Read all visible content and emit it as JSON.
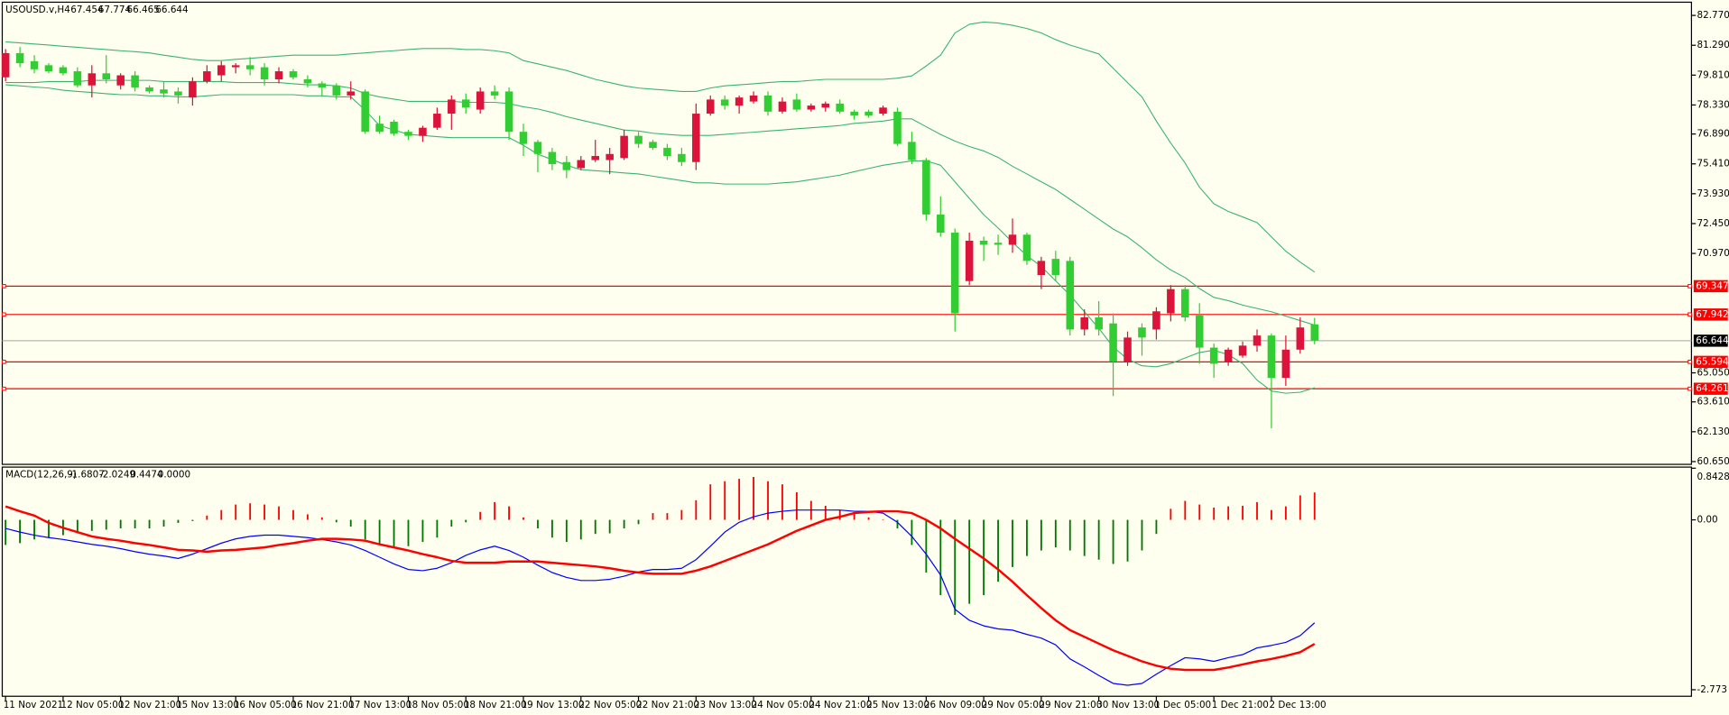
{
  "chart_data": {
    "type": "candlestick",
    "symbol_label": "USOUSD.v,H4",
    "background": "#fffff0",
    "up_color": "#dc143c",
    "down_color": "#32cd32",
    "candles": {
      "open": [
        79.7,
        80.9,
        80.5,
        80.3,
        80.2,
        80.0,
        79.3,
        79.9,
        79.3,
        79.8,
        79.2,
        79.1,
        79.0,
        78.7,
        79.5,
        79.8,
        80.2,
        80.3,
        80.2,
        79.6,
        80.0,
        79.6,
        79.4,
        79.3,
        78.8,
        79.0,
        77.4,
        77.5,
        77.0,
        76.8,
        77.2,
        77.9,
        78.6,
        78.1,
        79.0,
        79.0,
        77.0,
        76.5,
        76.0,
        75.5,
        75.2,
        75.6,
        75.6,
        75.7,
        76.8,
        76.5,
        76.2,
        75.9,
        75.5,
        77.9,
        78.6,
        78.3,
        78.5,
        78.8,
        78.0,
        78.6,
        78.1,
        78.2,
        78.4,
        78.0,
        78.0,
        77.9,
        78.0,
        76.5,
        75.6,
        72.9,
        72.0,
        69.6,
        71.6,
        71.5,
        71.4,
        71.9,
        69.9,
        70.7,
        70.6,
        67.2,
        67.8,
        67.5,
        65.6,
        67.3,
        67.2,
        68.0,
        69.2,
        67.9,
        66.3,
        65.6,
        65.9,
        66.4,
        66.9,
        64.8,
        66.2,
        67.454
      ],
      "high": [
        81.1,
        81.2,
        80.8,
        80.4,
        80.3,
        80.2,
        80.3,
        80.8,
        79.9,
        80.0,
        79.3,
        79.5,
        79.2,
        79.7,
        80.3,
        80.5,
        80.4,
        80.7,
        80.4,
        80.2,
        80.1,
        79.8,
        79.5,
        79.4,
        79.5,
        79.1,
        77.8,
        77.6,
        77.1,
        77.3,
        78.2,
        78.8,
        78.9,
        79.2,
        79.3,
        79.2,
        77.4,
        76.6,
        76.2,
        75.8,
        75.8,
        76.6,
        76.2,
        77.1,
        77.0,
        76.6,
        76.4,
        76.2,
        78.4,
        78.8,
        78.8,
        78.8,
        79.0,
        79.0,
        78.7,
        78.9,
        78.4,
        78.5,
        78.6,
        78.1,
        78.1,
        78.3,
        78.2,
        77.0,
        75.7,
        73.8,
        72.2,
        72.0,
        71.8,
        71.9,
        72.7,
        72.0,
        70.8,
        71.1,
        70.8,
        68.2,
        68.6,
        68.0,
        67.1,
        67.5,
        68.3,
        69.4,
        69.4,
        68.5,
        66.5,
        66.3,
        66.6,
        67.2,
        67.0,
        66.9,
        67.8,
        67.774
      ],
      "low": [
        79.5,
        80.2,
        79.9,
        79.9,
        79.8,
        79.2,
        78.7,
        79.4,
        79.1,
        79.0,
        78.9,
        78.7,
        78.4,
        78.3,
        79.4,
        79.5,
        79.9,
        79.8,
        79.3,
        79.4,
        79.6,
        79.2,
        78.8,
        78.6,
        78.6,
        76.9,
        76.9,
        76.8,
        76.6,
        76.5,
        77.1,
        77.1,
        77.9,
        77.9,
        78.6,
        76.6,
        75.8,
        75.0,
        75.1,
        74.7,
        75.1,
        75.5,
        74.9,
        75.6,
        76.2,
        76.1,
        75.6,
        75.3,
        75.1,
        77.8,
        78.1,
        77.9,
        78.4,
        77.8,
        77.9,
        78.0,
        78.0,
        78.0,
        77.9,
        77.6,
        77.7,
        77.8,
        76.3,
        75.4,
        72.6,
        71.8,
        67.1,
        69.4,
        70.6,
        70.9,
        71.0,
        70.4,
        69.2,
        69.6,
        66.9,
        66.9,
        66.9,
        63.9,
        65.4,
        65.9,
        66.7,
        67.6,
        67.6,
        65.5,
        64.8,
        65.4,
        65.8,
        66.1,
        62.3,
        64.4,
        66.0,
        66.465
      ],
      "close": [
        80.9,
        80.4,
        80.1,
        80.0,
        79.9,
        79.3,
        79.9,
        79.6,
        79.8,
        79.2,
        79.0,
        78.9,
        78.8,
        79.5,
        80.0,
        80.3,
        80.3,
        80.1,
        79.6,
        80.0,
        79.7,
        79.4,
        79.2,
        78.8,
        79.0,
        77.0,
        77.0,
        76.9,
        76.8,
        77.2,
        77.9,
        78.6,
        78.2,
        79.0,
        78.8,
        77.0,
        76.4,
        75.9,
        75.4,
        75.1,
        75.6,
        75.8,
        75.9,
        76.8,
        76.4,
        76.2,
        75.8,
        75.5,
        77.9,
        78.6,
        78.3,
        78.7,
        78.8,
        78.0,
        78.5,
        78.1,
        78.3,
        78.4,
        78.0,
        77.8,
        77.8,
        78.2,
        76.4,
        75.6,
        72.9,
        72.0,
        68.0,
        71.6,
        71.4,
        71.4,
        71.9,
        70.6,
        70.6,
        69.9,
        67.2,
        67.8,
        67.2,
        65.6,
        66.8,
        66.8,
        68.1,
        69.2,
        67.8,
        66.3,
        65.5,
        66.2,
        66.4,
        66.9,
        64.8,
        66.2,
        67.3,
        66.644
      ]
    },
    "bands": [
      {
        "color": "#3cb371",
        "values": [
          81.46,
          81.41,
          81.35,
          81.3,
          81.24,
          81.19,
          81.13,
          81.08,
          81.02,
          80.97,
          80.91,
          80.8,
          80.7,
          80.59,
          80.53,
          80.53,
          80.59,
          80.64,
          80.7,
          80.75,
          80.8,
          80.8,
          80.8,
          80.8,
          80.86,
          80.91,
          80.97,
          81.02,
          81.08,
          81.13,
          81.13,
          81.13,
          81.08,
          81.08,
          81.02,
          80.91,
          80.53,
          80.37,
          80.2,
          80.04,
          79.82,
          79.6,
          79.44,
          79.28,
          79.17,
          79.11,
          79.06,
          79.0,
          79.0,
          79.17,
          79.28,
          79.33,
          79.38,
          79.44,
          79.49,
          79.49,
          79.55,
          79.6,
          79.6,
          79.6,
          79.6,
          79.6,
          79.66,
          79.77,
          80.26,
          80.8,
          81.9,
          82.33,
          82.44,
          82.39,
          82.28,
          82.12,
          81.9,
          81.57,
          81.3,
          81.08,
          80.86,
          80.15,
          79.44,
          78.73,
          77.53,
          76.44,
          75.45,
          74.25,
          73.43,
          73.05,
          72.78,
          72.5,
          71.79,
          71.08,
          70.54,
          70.05
        ]
      },
      {
        "color": "#3cb371",
        "values": [
          79.44,
          79.44,
          79.44,
          79.49,
          79.49,
          79.49,
          79.55,
          79.55,
          79.55,
          79.55,
          79.55,
          79.49,
          79.49,
          79.49,
          79.49,
          79.49,
          79.44,
          79.44,
          79.44,
          79.44,
          79.38,
          79.33,
          79.33,
          79.28,
          79.17,
          78.89,
          78.73,
          78.62,
          78.51,
          78.51,
          78.51,
          78.51,
          78.46,
          78.46,
          78.46,
          78.4,
          78.24,
          78.13,
          77.96,
          77.75,
          77.58,
          77.42,
          77.25,
          77.09,
          77.04,
          76.93,
          76.87,
          76.82,
          76.82,
          76.82,
          76.87,
          76.93,
          76.98,
          77.04,
          77.09,
          77.15,
          77.2,
          77.25,
          77.31,
          77.42,
          77.47,
          77.53,
          77.64,
          77.64,
          77.25,
          76.87,
          76.54,
          76.27,
          76.05,
          75.73,
          75.29,
          74.91,
          74.52,
          74.14,
          73.65,
          73.16,
          72.67,
          72.18,
          71.79,
          71.25,
          70.65,
          70.15,
          69.77,
          69.23,
          68.79,
          68.63,
          68.41,
          68.24,
          68.08,
          67.86,
          67.64,
          67.42
        ]
      },
      {
        "color": "#3cb371",
        "values": [
          79.33,
          79.28,
          79.22,
          79.17,
          79.06,
          79.0,
          78.95,
          78.89,
          78.84,
          78.84,
          78.78,
          78.78,
          78.73,
          78.73,
          78.78,
          78.84,
          78.84,
          78.84,
          78.84,
          78.84,
          78.84,
          78.78,
          78.78,
          78.73,
          78.73,
          78.07,
          77.31,
          77.09,
          76.87,
          76.82,
          76.76,
          76.71,
          76.71,
          76.71,
          76.71,
          76.71,
          76.33,
          75.89,
          75.62,
          75.34,
          75.12,
          75.07,
          75.02,
          74.96,
          74.91,
          74.8,
          74.69,
          74.58,
          74.47,
          74.47,
          74.41,
          74.41,
          74.41,
          74.41,
          74.47,
          74.52,
          74.63,
          74.74,
          74.85,
          75.02,
          75.18,
          75.34,
          75.45,
          75.56,
          75.56,
          75.34,
          74.52,
          73.7,
          72.89,
          72.23,
          71.52,
          70.86,
          70.32,
          69.61,
          68.9,
          68.08,
          67.26,
          66.33,
          65.73,
          65.4,
          65.35,
          65.51,
          65.79,
          66.06,
          66.17,
          65.95,
          65.51,
          64.69,
          64.15,
          64.04,
          64.09,
          64.31
        ]
      }
    ],
    "levels": [
      {
        "value": 69.347,
        "color": "#ff0000"
      },
      {
        "value": 67.942,
        "color": "#ff0000"
      },
      {
        "value": 65.594,
        "color": "#ff0000"
      },
      {
        "value": 64.261,
        "color": "#ff0000"
      }
    ],
    "price_line_color": "#b4b4b4",
    "xlim": [
      -0.23,
      117.2
    ],
    "xticks": [
      {
        "value": 0,
        "label": "11 Nov 2021"
      },
      {
        "value": 4,
        "label": "12 Nov 05:00"
      },
      {
        "value": 8,
        "label": "12 Nov 21:00"
      },
      {
        "value": 12,
        "label": "15 Nov 13:00"
      },
      {
        "value": 16,
        "label": "16 Nov 05:00"
      },
      {
        "value": 20,
        "label": "16 Nov 21:00"
      },
      {
        "value": 24,
        "label": "17 Nov 13:00"
      },
      {
        "value": 28,
        "label": "18 Nov 05:00"
      },
      {
        "value": 32,
        "label": "18 Nov 21:00"
      },
      {
        "value": 36,
        "label": "19 Nov 13:00"
      },
      {
        "value": 40,
        "label": "22 Nov 05:00"
      },
      {
        "value": 44,
        "label": "22 Nov 21:00"
      },
      {
        "value": 48,
        "label": "23 Nov 13:00"
      },
      {
        "value": 52,
        "label": "24 Nov 05:00"
      },
      {
        "value": 56,
        "label": "24 Nov 21:00"
      },
      {
        "value": 60,
        "label": "25 Nov 13:00"
      },
      {
        "value": 64,
        "label": "26 Nov 09:00"
      },
      {
        "value": 68,
        "label": "29 Nov 05:00"
      },
      {
        "value": 72,
        "label": "29 Nov 21:00"
      },
      {
        "value": 76,
        "label": "30 Nov 13:00"
      },
      {
        "value": 80,
        "label": "1 Dec 05:00"
      },
      {
        "value": 84,
        "label": "1 Dec 21:00"
      },
      {
        "value": 88,
        "label": "2 Dec 13:00"
      }
    ],
    "ylim": [
      60.54,
      83.37
    ],
    "yticks": [
      {
        "value": 82.77,
        "label": "82.770"
      },
      {
        "value": 81.29,
        "label": "81.290"
      },
      {
        "value": 79.81,
        "label": "79.810"
      },
      {
        "value": 78.33,
        "label": "78.330"
      },
      {
        "value": 76.89,
        "label": "76.890"
      },
      {
        "value": 75.41,
        "label": "75.410"
      },
      {
        "value": 73.93,
        "label": "73.930"
      },
      {
        "value": 72.45,
        "label": "72.450"
      },
      {
        "value": 70.97,
        "label": "70.970"
      },
      {
        "value": 65.05,
        "label": "65.050"
      },
      {
        "value": 63.61,
        "label": "63.610"
      },
      {
        "value": 62.13,
        "label": "62.130"
      },
      {
        "value": 60.65,
        "label": "60.650"
      }
    ],
    "macd": {
      "label": "MACD(12,26,9)",
      "extra_value": {
        "value": 0,
        "label": "0.0000"
      },
      "ylim": [
        -2.88,
        0.8428
      ],
      "yticks": [
        0.8428,
        {
          "value": 0,
          "label": "0.00"
        },
        -2.773
      ],
      "histogram": {
        "up_color": "#ff0000",
        "down_color": "#007800",
        "values": [
          -0.41,
          -0.38,
          -0.32,
          -0.29,
          -0.25,
          -0.22,
          -0.18,
          -0.16,
          -0.14,
          -0.14,
          -0.14,
          -0.11,
          -0.05,
          -0.02,
          0.07,
          0.16,
          0.25,
          0.27,
          0.25,
          0.22,
          0.16,
          0.09,
          0.04,
          -0.04,
          -0.11,
          -0.32,
          -0.41,
          -0.45,
          -0.43,
          -0.36,
          -0.29,
          -0.11,
          -0.04,
          0.13,
          0.29,
          0.22,
          0.04,
          -0.14,
          -0.29,
          -0.36,
          -0.32,
          -0.23,
          -0.22,
          -0.14,
          -0.07,
          0.11,
          0.11,
          0.16,
          0.32,
          0.58,
          0.63,
          0.67,
          0.7,
          0.63,
          0.58,
          0.45,
          0.31,
          0.23,
          0.16,
          0.11,
          0.04,
          0.01,
          -0.14,
          -0.41,
          -0.86,
          -1.23,
          -1.55,
          -1.37,
          -1.23,
          -1.01,
          -0.77,
          -0.59,
          -0.5,
          -0.45,
          -0.5,
          -0.59,
          -0.65,
          -0.72,
          -0.68,
          -0.5,
          -0.23,
          0.18,
          0.31,
          0.25,
          0.2,
          0.22,
          0.23,
          0.29,
          0.16,
          0.22,
          0.4,
          0.4474
        ]
      },
      "main": {
        "color": "#0000ff",
        "values": [
          -0.14,
          -0.2,
          -0.25,
          -0.29,
          -0.32,
          -0.36,
          -0.4,
          -0.43,
          -0.47,
          -0.52,
          -0.56,
          -0.59,
          -0.63,
          -0.56,
          -0.47,
          -0.38,
          -0.31,
          -0.27,
          -0.25,
          -0.25,
          -0.27,
          -0.29,
          -0.32,
          -0.36,
          -0.41,
          -0.5,
          -0.61,
          -0.72,
          -0.81,
          -0.83,
          -0.79,
          -0.7,
          -0.58,
          -0.49,
          -0.43,
          -0.5,
          -0.61,
          -0.74,
          -0.86,
          -0.94,
          -0.99,
          -0.99,
          -0.97,
          -0.92,
          -0.85,
          -0.81,
          -0.81,
          -0.79,
          -0.65,
          -0.43,
          -0.2,
          -0.04,
          0.05,
          0.11,
          0.14,
          0.16,
          0.16,
          0.16,
          0.16,
          0.14,
          0.14,
          0.11,
          -0.04,
          -0.27,
          -0.56,
          -0.9,
          -1.46,
          -1.64,
          -1.73,
          -1.78,
          -1.8,
          -1.87,
          -1.93,
          -2.04,
          -2.27,
          -2.4,
          -2.54,
          -2.67,
          -2.7,
          -2.67,
          -2.52,
          -2.38,
          -2.25,
          -2.27,
          -2.31,
          -2.25,
          -2.2,
          -2.09,
          -2.05,
          -2.0,
          -1.89,
          -1.6807
        ]
      },
      "signal": {
        "color": "#ff0000",
        "values": [
          0.22,
          0.14,
          0.07,
          -0.05,
          -0.13,
          -0.2,
          -0.27,
          -0.31,
          -0.34,
          -0.38,
          -0.41,
          -0.45,
          -0.49,
          -0.5,
          -0.52,
          -0.5,
          -0.49,
          -0.47,
          -0.45,
          -0.41,
          -0.38,
          -0.34,
          -0.31,
          -0.31,
          -0.32,
          -0.34,
          -0.4,
          -0.45,
          -0.5,
          -0.56,
          -0.61,
          -0.67,
          -0.7,
          -0.7,
          -0.7,
          -0.68,
          -0.68,
          -0.68,
          -0.7,
          -0.72,
          -0.74,
          -0.76,
          -0.79,
          -0.83,
          -0.86,
          -0.88,
          -0.88,
          -0.88,
          -0.83,
          -0.76,
          -0.67,
          -0.58,
          -0.49,
          -0.4,
          -0.29,
          -0.18,
          -0.09,
          0.0,
          0.05,
          0.11,
          0.13,
          0.14,
          0.14,
          0.11,
          0.0,
          -0.14,
          -0.31,
          -0.47,
          -0.63,
          -0.81,
          -1.01,
          -1.23,
          -1.44,
          -1.64,
          -1.8,
          -1.91,
          -2.02,
          -2.13,
          -2.22,
          -2.31,
          -2.38,
          -2.43,
          -2.45,
          -2.45,
          -2.45,
          -2.41,
          -2.36,
          -2.31,
          -2.27,
          -2.22,
          -2.16,
          -2.0249
        ]
      }
    }
  }
}
